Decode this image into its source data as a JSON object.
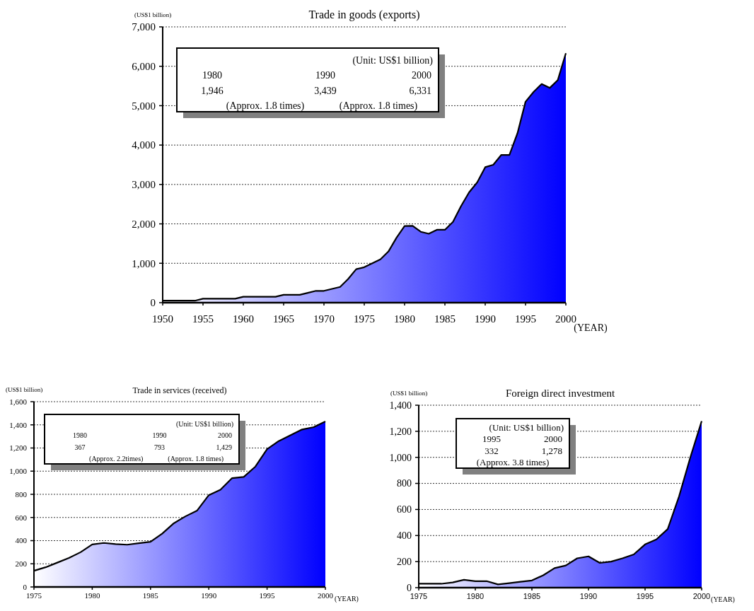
{
  "chart_data": [
    {
      "type": "area",
      "title": "Trade in goods (exports)",
      "ylabel": "(US$1 billion)",
      "xlabel": "(YEAR)",
      "x": [
        1950,
        1951,
        1952,
        1953,
        1954,
        1955,
        1956,
        1957,
        1958,
        1959,
        1960,
        1961,
        1962,
        1963,
        1964,
        1965,
        1966,
        1967,
        1968,
        1969,
        1970,
        1971,
        1972,
        1973,
        1974,
        1975,
        1976,
        1977,
        1978,
        1979,
        1980,
        1981,
        1982,
        1983,
        1984,
        1985,
        1986,
        1987,
        1988,
        1989,
        1990,
        1991,
        1992,
        1993,
        1994,
        1995,
        1996,
        1997,
        1998,
        1999,
        2000
      ],
      "series": [
        {
          "color": "#0000ff",
          "values": [
            50,
            50,
            50,
            50,
            50,
            100,
            100,
            100,
            100,
            100,
            150,
            150,
            150,
            150,
            150,
            200,
            200,
            200,
            250,
            300,
            300,
            350,
            400,
            600,
            850,
            900,
            1000,
            1100,
            1300,
            1650,
            1946,
            1950,
            1800,
            1750,
            1850,
            1850,
            2050,
            2450,
            2800,
            3050,
            3439,
            3500,
            3750,
            3750,
            4300,
            5100,
            5350,
            5550,
            5450,
            5650,
            6331
          ]
        }
      ],
      "xlim": [
        1950,
        2000
      ],
      "xticks": [
        1950,
        1955,
        1960,
        1965,
        1970,
        1975,
        1980,
        1985,
        1990,
        1995,
        2000
      ],
      "ylim": [
        0,
        7000
      ],
      "yticks": [
        {
          "value": 0,
          "label": "0"
        },
        {
          "value": 1000,
          "label": "1,000"
        },
        {
          "value": 2000,
          "label": "2,000"
        },
        {
          "value": 3000,
          "label": "3,000"
        },
        {
          "value": 4000,
          "label": "4,000"
        },
        {
          "value": 5000,
          "label": "5,000"
        },
        {
          "value": 6000,
          "label": "6,000"
        },
        {
          "value": 7000,
          "label": "7,000"
        }
      ],
      "grid": "y",
      "annotations": [
        "(Unit: US$1 billion)",
        "1980",
        "1990",
        "2000",
        "1,946",
        "3,439",
        "6,331",
        "(Approx. 1.8 times)",
        "(Approx. 1.8 times)"
      ]
    },
    {
      "type": "area",
      "title": "Trade in services (received)",
      "ylabel": "(US$1 billion)",
      "xlabel": "(YEAR)",
      "x": [
        1975,
        1976,
        1977,
        1978,
        1979,
        1980,
        1981,
        1982,
        1983,
        1984,
        1985,
        1986,
        1987,
        1988,
        1989,
        1990,
        1991,
        1992,
        1993,
        1994,
        1995,
        1996,
        1997,
        1998,
        1999,
        2000
      ],
      "series": [
        {
          "color": "#0000ff",
          "values": [
            140,
            170,
            210,
            250,
            300,
            367,
            380,
            370,
            365,
            378,
            390,
            460,
            550,
            610,
            660,
            793,
            840,
            940,
            950,
            1040,
            1190,
            1260,
            1310,
            1360,
            1380,
            1429
          ]
        }
      ],
      "xlim": [
        1975,
        2000
      ],
      "xticks": [
        1975,
        1980,
        1985,
        1990,
        1995,
        2000
      ],
      "ylim": [
        0,
        1600
      ],
      "yticks": [
        {
          "value": 0,
          "label": "0"
        },
        {
          "value": 200,
          "label": "200"
        },
        {
          "value": 400,
          "label": "400"
        },
        {
          "value": 600,
          "label": "600"
        },
        {
          "value": 800,
          "label": "800"
        },
        {
          "value": 1000,
          "label": "1,000"
        },
        {
          "value": 1200,
          "label": "1,200"
        },
        {
          "value": 1400,
          "label": "1,400"
        },
        {
          "value": 1600,
          "label": "1,600"
        }
      ],
      "grid": "y",
      "annotations": [
        "(Unit: US$1 billion)",
        "1980",
        "1990",
        "2000",
        "367",
        "793",
        "1,429",
        "(Approx. 2.2times)",
        "(Approx. 1.8 times)"
      ]
    },
    {
      "type": "area",
      "title": "Foreign direct investment",
      "ylabel": "(US$1 billion)",
      "xlabel": "(YEAR)",
      "x": [
        1975,
        1976,
        1977,
        1978,
        1979,
        1980,
        1981,
        1982,
        1983,
        1984,
        1985,
        1986,
        1987,
        1988,
        1989,
        1990,
        1991,
        1992,
        1993,
        1994,
        1995,
        1996,
        1997,
        1998,
        1999,
        2000
      ],
      "series": [
        {
          "color": "#0000ff",
          "values": [
            30,
            30,
            30,
            40,
            60,
            50,
            50,
            25,
            35,
            45,
            55,
            95,
            150,
            170,
            225,
            240,
            190,
            200,
            225,
            255,
            332,
            370,
            450,
            700,
            1000,
            1278
          ]
        }
      ],
      "xlim": [
        1975,
        2000
      ],
      "xticks": [
        1975,
        1980,
        1985,
        1990,
        1995,
        2000
      ],
      "ylim": [
        0,
        1400
      ],
      "yticks": [
        {
          "value": 0,
          "label": "0"
        },
        {
          "value": 200,
          "label": "200"
        },
        {
          "value": 400,
          "label": "400"
        },
        {
          "value": 600,
          "label": "600"
        },
        {
          "value": 800,
          "label": "800"
        },
        {
          "value": 1000,
          "label": "1,000"
        },
        {
          "value": 1200,
          "label": "1,200"
        },
        {
          "value": 1400,
          "label": "1,400"
        }
      ],
      "grid": "y",
      "annotations": [
        "(Unit: US$1 billion)",
        "1995",
        "2000",
        "332",
        "1,278",
        "(Approx. 3.8 times)"
      ]
    }
  ]
}
